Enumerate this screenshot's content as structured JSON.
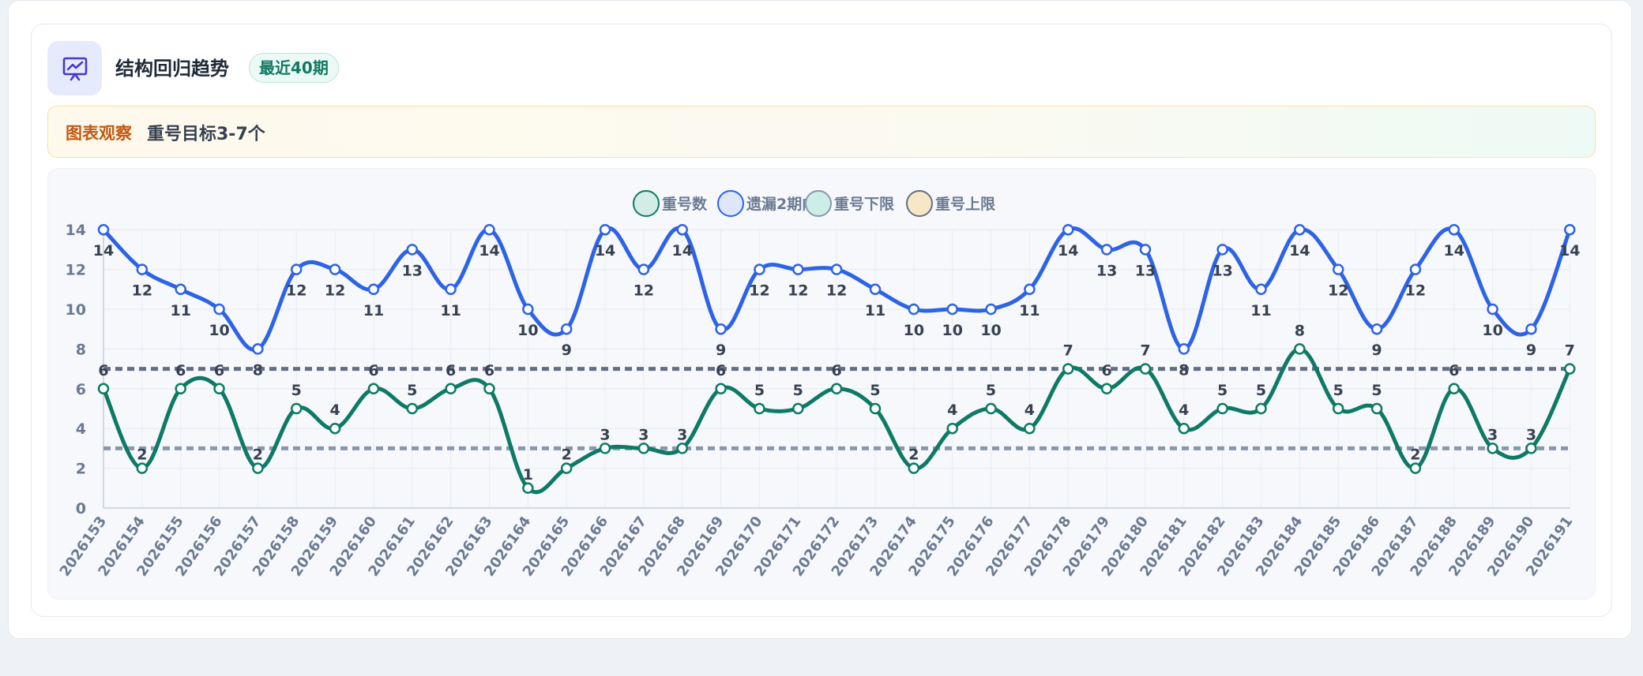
{
  "header": {
    "icon": "chart-presentation-icon",
    "title": "结构回归趋势",
    "badge": "最近40期"
  },
  "observation": {
    "label": "图表观察",
    "text": "重号目标3-7个"
  },
  "colors": {
    "repeat": "#0e7a66",
    "missing": "#2d63e6",
    "lower": "#8a97ab",
    "upper": "#636e85",
    "tick_text": "#6b7a92",
    "label_text": "#374151"
  },
  "chart_data": {
    "type": "line",
    "legend": [
      "重号数",
      "遗漏2期内",
      "重号下限",
      "重号上限"
    ],
    "categories": [
      "2026153",
      "2026154",
      "2026155",
      "2026156",
      "2026157",
      "2026158",
      "2026159",
      "2026160",
      "2026161",
      "2026162",
      "2026163",
      "2026164",
      "2026165",
      "2026166",
      "2026167",
      "2026168",
      "2026169",
      "2026170",
      "2026171",
      "2026172",
      "2026173",
      "2026174",
      "2026175",
      "2026176",
      "2026177",
      "2026178",
      "2026179",
      "2026180",
      "2026181",
      "2026182",
      "2026183",
      "2026184",
      "2026185",
      "2026186",
      "2026187",
      "2026188",
      "2026189",
      "2026190",
      "2026191"
    ],
    "series": [
      {
        "name": "重号数",
        "values": [
          6,
          2,
          6,
          6,
          2,
          5,
          4,
          6,
          5,
          6,
          6,
          1,
          2,
          3,
          3,
          3,
          6,
          5,
          5,
          6,
          5,
          2,
          4,
          5,
          4,
          7,
          6,
          7,
          4,
          5,
          5,
          8,
          5,
          5,
          2,
          6,
          3,
          3,
          7
        ]
      },
      {
        "name": "遗漏2期内",
        "values": [
          14,
          12,
          11,
          10,
          8,
          12,
          12,
          11,
          13,
          11,
          14,
          10,
          9,
          14,
          12,
          14,
          9,
          12,
          12,
          12,
          11,
          10,
          10,
          10,
          11,
          14,
          13,
          13,
          8,
          13,
          11,
          14,
          12,
          9,
          12,
          14,
          10,
          9,
          14
        ]
      },
      {
        "name": "重号下限",
        "value": 3
      },
      {
        "name": "重号上限",
        "value": 7
      }
    ],
    "yticks": [
      0,
      2,
      4,
      6,
      8,
      10,
      12,
      14
    ],
    "ylim": [
      0,
      14
    ],
    "grid": true,
    "legend_position": "top-center"
  }
}
